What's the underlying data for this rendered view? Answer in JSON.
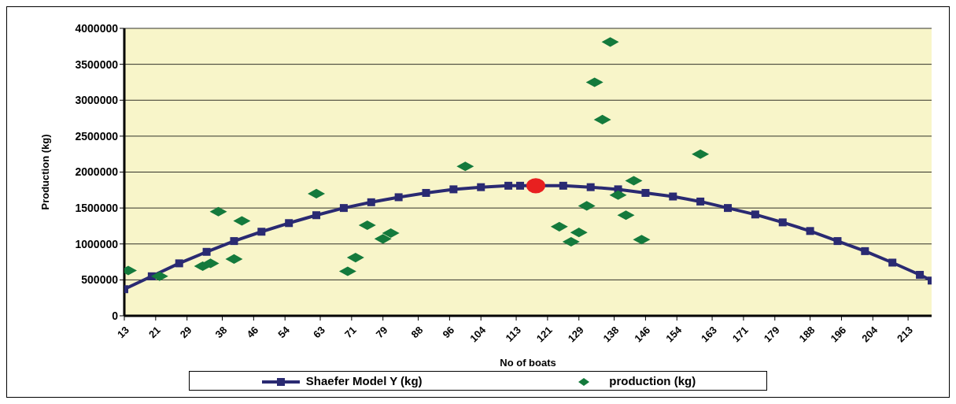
{
  "chart_data": {
    "type": "line",
    "xlabel": "No of boats",
    "ylabel": "Production (kg)",
    "xlim": [
      13,
      219
    ],
    "xticks": [
      13,
      21,
      29,
      38,
      46,
      54,
      63,
      71,
      79,
      88,
      96,
      104,
      113,
      121,
      129,
      138,
      146,
      154,
      163,
      171,
      179,
      188,
      196,
      204,
      213
    ],
    "ylim": [
      0,
      4000000
    ],
    "yticks": [
      0,
      500000,
      1000000,
      1500000,
      2000000,
      2500000,
      3000000,
      3500000,
      4000000
    ],
    "grid": "y",
    "legend": "bottom",
    "series": [
      {
        "name": "Shaefer Model Y (kg)",
        "marker": "square",
        "color": "#2a2a72",
        "x": [
          13,
          20,
          27,
          34,
          41,
          48,
          55,
          62,
          69,
          76,
          83,
          90,
          97,
          104,
          111,
          114,
          125,
          132,
          139,
          146,
          153,
          160,
          167,
          174,
          181,
          188,
          195,
          202,
          209,
          216,
          219
        ],
        "values": [
          370000,
          550000,
          730000,
          890000,
          1040000,
          1170000,
          1290000,
          1400000,
          1500000,
          1580000,
          1650000,
          1710000,
          1760000,
          1790000,
          1810000,
          1810000,
          1810000,
          1790000,
          1760000,
          1710000,
          1660000,
          1590000,
          1500000,
          1410000,
          1300000,
          1180000,
          1040000,
          900000,
          740000,
          570000,
          490000
        ]
      },
      {
        "name": "production (kg)",
        "type": "scatter",
        "marker": "diamond",
        "color": "#147a3c",
        "x": [
          14,
          22,
          33,
          35,
          37,
          41,
          43,
          62,
          70,
          72,
          75,
          79,
          81,
          100,
          124,
          127,
          129,
          131,
          133,
          135,
          137,
          139,
          141,
          143,
          145,
          160
        ],
        "values": [
          630000,
          550000,
          690000,
          730000,
          1450000,
          790000,
          1320000,
          1700000,
          620000,
          810000,
          1260000,
          1070000,
          1150000,
          2080000,
          1240000,
          1030000,
          1160000,
          1530000,
          3250000,
          2730000,
          3810000,
          1680000,
          1400000,
          1880000,
          1060000,
          2250000
        ]
      },
      {
        "type": "scatter",
        "marker": "circle",
        "color": "#e82020",
        "x": [
          118
        ],
        "values": [
          1810000
        ]
      }
    ]
  }
}
